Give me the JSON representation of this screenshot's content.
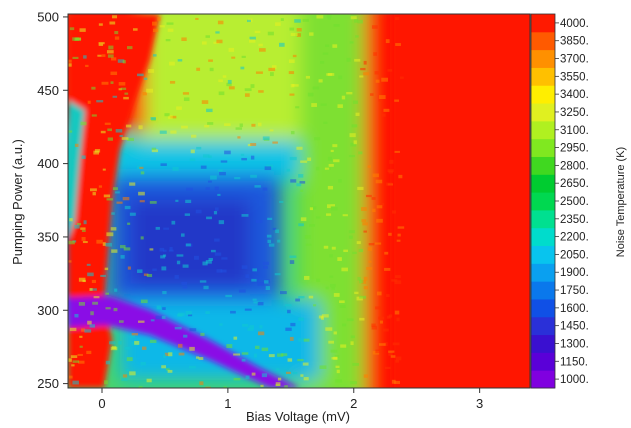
{
  "chart_data": {
    "type": "heatmap",
    "xlabel": "Bias Voltage (mV)",
    "ylabel": "Pumping Power (a.u.)",
    "colorbar_label": "Noise Temperature (K)",
    "xlim": [
      -0.27,
      3.4
    ],
    "ylim": [
      247,
      502
    ],
    "xticks": [
      0,
      1,
      2,
      3
    ],
    "yticks": [
      250,
      300,
      350,
      400,
      450,
      500
    ],
    "colorbar_levels": [
      1000,
      1150,
      1300,
      1450,
      1600,
      1750,
      1900,
      2050,
      2200,
      2350,
      2500,
      2650,
      2800,
      2950,
      3100,
      3250,
      3400,
      3550,
      3700,
      3850,
      4000
    ],
    "colorbar_tick_labels": [
      "1000.",
      "1150.",
      "1300.",
      "1450.",
      "1600.",
      "1750.",
      "1900.",
      "2050.",
      "2200.",
      "2350.",
      "2500.",
      "2650.",
      "2800.",
      "2950.",
      "3100.",
      "3250.",
      "3400.",
      "3550.",
      "3700.",
      "3850.",
      "4000."
    ],
    "colorbar_colors": [
      "#8000e0",
      "#5a00d8",
      "#3a10d0",
      "#2a30d8",
      "#1050e6",
      "#0a78ec",
      "#0aa0f0",
      "#08c4ee",
      "#00dccc",
      "#00e090",
      "#00d850",
      "#00cc30",
      "#40d820",
      "#80e820",
      "#b0f020",
      "#e0f020",
      "#ffee00",
      "#ffc000",
      "#ff9000",
      "#ff5a00",
      "#ff1a00"
    ],
    "regions": [
      {
        "x": [
          -0.27,
          0.38
        ],
        "y": [
          247,
          502
        ],
        "z": 4000
      },
      {
        "x": [
          2.05,
          3.4
        ],
        "y": [
          247,
          502
        ],
        "z": 4000
      },
      {
        "x": [
          0.35,
          1.65
        ],
        "y": [
          300,
          380
        ],
        "z": 1500
      },
      {
        "x": [
          -0.27,
          0.0
        ],
        "y": [
          270,
          310
        ],
        "z": 1000
      },
      {
        "x": [
          0.05,
          0.6
        ],
        "y": [
          425,
          500
        ],
        "z": 2900
      }
    ],
    "grid": false
  }
}
